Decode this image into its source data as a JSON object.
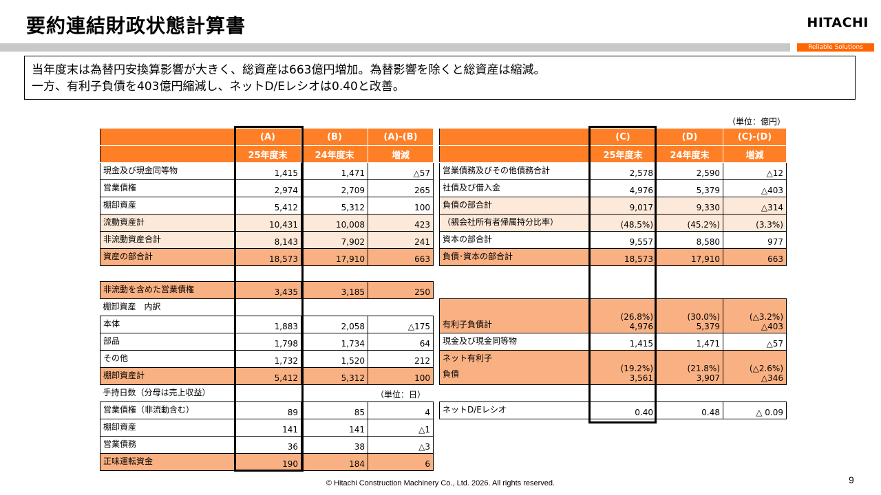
{
  "header": {
    "title": "要約連結財政状態計算書",
    "logo": "HITACHI",
    "tagline": "Reliable Solutions"
  },
  "summary": {
    "line1": "当年度末は為替円安換算影響が大きく、総資産は663億円増加。為替影響を除くと総資産は縮減。",
    "line2": "一方、有利子負債を403億円縮減し、ネットD/Eレシオは0.40と改善。"
  },
  "unit_top": "（単位：億円）",
  "left": {
    "hdr1": [
      "(A)",
      "(B)",
      "(A)-(B)"
    ],
    "hdr2": [
      "25年度末",
      "24年度末",
      "増減"
    ],
    "assets": [
      {
        "label": "現金及び現金同等物",
        "a": "1,415",
        "b": "1,471",
        "d": "△57"
      },
      {
        "label": "営業債権",
        "a": "2,974",
        "b": "2,709",
        "d": "265"
      },
      {
        "label": "棚卸資産",
        "a": "5,412",
        "b": "5,312",
        "d": "100"
      },
      {
        "label": "流動資産計",
        "a": "10,431",
        "b": "10,008",
        "d": "423"
      },
      {
        "label": "非流動資産合計",
        "a": "8,143",
        "b": "7,902",
        "d": "241"
      },
      {
        "label": "資産の部合計",
        "a": "18,573",
        "b": "17,910",
        "d": "663"
      }
    ],
    "receivables": {
      "label": "非流動を含めた営業債権",
      "a": "3,435",
      "b": "3,185",
      "d": "250"
    },
    "inventory_title": "棚卸資産　内訳",
    "inventory": [
      {
        "label": "本体",
        "a": "1,883",
        "b": "2,058",
        "d": "△175"
      },
      {
        "label": "部品",
        "a": "1,798",
        "b": "1,734",
        "d": "64"
      },
      {
        "label": "その他",
        "a": "1,732",
        "b": "1,520",
        "d": "212"
      },
      {
        "label": "棚卸資産計",
        "a": "5,412",
        "b": "5,312",
        "d": "100"
      }
    ],
    "days_title": "手持日数（分母は売上収益）",
    "days_unit": "（単位：日）",
    "days": [
      {
        "label": "営業債権（非流動含む）",
        "a": "89",
        "b": "85",
        "d": "4"
      },
      {
        "label": "棚卸資産",
        "a": "141",
        "b": "141",
        "d": "△1"
      },
      {
        "label": "営業債務",
        "a": "36",
        "b": "38",
        "d": "△3"
      },
      {
        "label": "正味運転資金",
        "a": "190",
        "b": "184",
        "d": "6"
      }
    ]
  },
  "right": {
    "hdr1": [
      "(C)",
      "(D)",
      "(C)-(D)"
    ],
    "hdr2": [
      "25年度末",
      "24年度末",
      "増減"
    ],
    "liabilities": [
      {
        "label": "営業債務及びその他債務合計",
        "c": "2,578",
        "d": "2,590",
        "e": "△12"
      },
      {
        "label": "社債及び借入金",
        "c": "4,976",
        "d": "5,379",
        "e": "△403"
      },
      {
        "label": "負債の部合計",
        "c": "9,017",
        "d": "9,330",
        "e": "△314"
      },
      {
        "label": "（親会社所有者帰属持分比率）",
        "c": "(48.5%)",
        "d": "(45.2%)",
        "e": "(3.3%)"
      },
      {
        "label": "資本の部合計",
        "c": "9,557",
        "d": "8,580",
        "e": "977"
      },
      {
        "label": "負債･資本の部合計",
        "c": "18,573",
        "d": "17,910",
        "e": "663"
      }
    ],
    "debt": {
      "label": "有利子負債計",
      "c1": "(26.8%)",
      "c2": "4,976",
      "d1": "(30.0%)",
      "d2": "5,379",
      "e1": "(△3.2%)",
      "e2": "△403"
    },
    "cash": {
      "label": "現金及び現金同等物",
      "c": "1,415",
      "d": "1,471",
      "e": "△57"
    },
    "netdebt": {
      "label1": "ネット有利子",
      "label2": "負債",
      "c1": "(19.2%)",
      "c2": "3,561",
      "d1": "(21.8%)",
      "d2": "3,907",
      "e1": "(△2.6%)",
      "e2": "△346"
    },
    "de": {
      "label": "ネットD/Eレシオ",
      "c": "0.40",
      "d": "0.48",
      "e": "△ 0.09"
    }
  },
  "footer": "© Hitachi Construction Machinery Co., Ltd. 2026. All rights reserved.",
  "page_number": "9"
}
